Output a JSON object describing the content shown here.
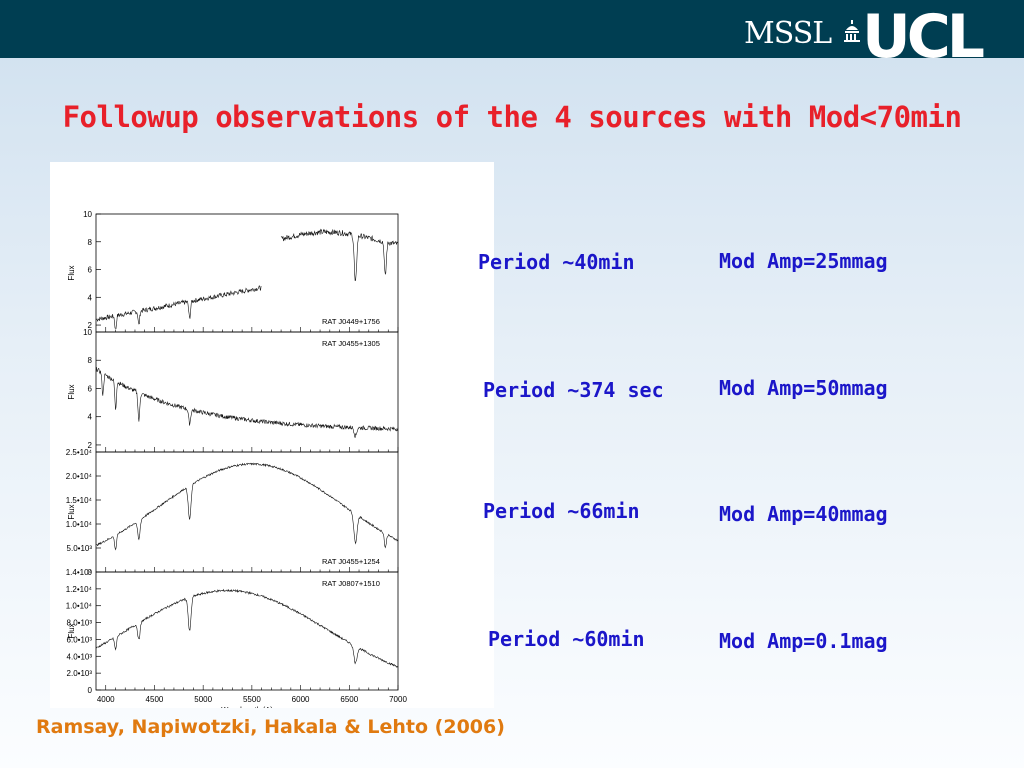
{
  "header": {
    "mssl": "MSSL",
    "ucl": "UCL"
  },
  "title": "Followup observations of the 4 sources with Mod<70min",
  "rows": [
    {
      "period": "Period ~40min",
      "amp": "Mod Amp=25mmag"
    },
    {
      "period": "Period ~374 sec",
      "amp": "Mod Amp=50mmag"
    },
    {
      "period": "Period ~66min",
      "amp": "Mod Amp=40mmag"
    },
    {
      "period": "Period ~60min",
      "amp": "Mod Amp=0.1mag"
    }
  ],
  "citation": "Ramsay, Napiwotzki, Hakala & Lehto (2006)",
  "chart_data": {
    "type": "line",
    "xlabel": "Wavelength (A)",
    "x_ticks": [
      "4000",
      "4500",
      "5000",
      "5500",
      "6000",
      "6500",
      "7000"
    ],
    "xlim": [
      3900,
      7000
    ],
    "panels": [
      {
        "label": "RAT J0449+1756",
        "ylabel": "Flux",
        "ylim": [
          1.5,
          10
        ],
        "ticks": [
          "2",
          "4",
          "6",
          "8",
          "10"
        ],
        "label_pos": "bottom-right"
      },
      {
        "label": "RAT J0455+1305",
        "ylabel": "Flux",
        "ylim": [
          1.5,
          10
        ],
        "ticks": [
          "2",
          "4",
          "6",
          "8",
          "10"
        ],
        "label_pos": "top-right"
      },
      {
        "label": "RAT J0455+1254",
        "ylabel": "Flux",
        "ylim": [
          0,
          25000
        ],
        "ticks": [
          "0",
          "5.0•10³",
          "1.0•10⁴",
          "1.5•10⁴",
          "2.0•10⁴",
          "2.5•10⁴"
        ],
        "label_pos": "bottom-right"
      },
      {
        "label": "RAT J0807+1510",
        "ylabel": "Flux",
        "ylim": [
          0,
          14000
        ],
        "ticks": [
          "0",
          "2.0•10³",
          "4.0•10³",
          "6.0•10³",
          "8.0•10³",
          "1.0•10⁴",
          "1.2•10⁴",
          "1.4•10⁴"
        ],
        "label_pos": "top-right"
      }
    ]
  }
}
